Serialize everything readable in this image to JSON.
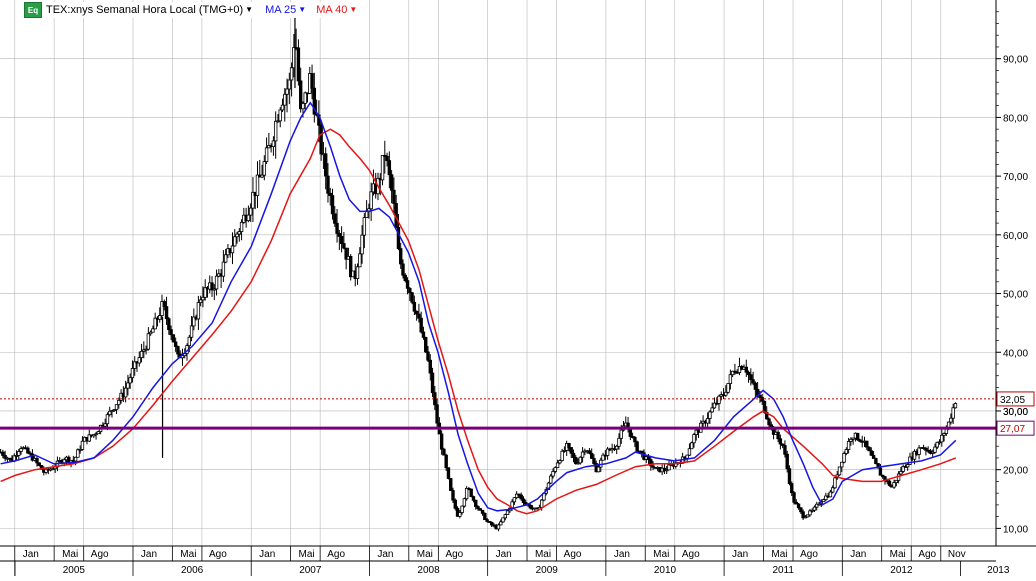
{
  "legend": {
    "badge": "Eq",
    "symbol_label": "TEX:xnys Semanal Hora Local (TMG+0)",
    "ma1_label": "MA 25",
    "ma2_label": "MA 40"
  },
  "colors": {
    "price": "#000000",
    "ma25": "#1515e6",
    "ma40": "#e61515",
    "level_line": "#7a007a",
    "current_line": "#c00000",
    "grid": "#b8b8b8",
    "badge": "#2a9d48"
  },
  "chart_data": {
    "type": "ohlc",
    "interval": "weekly",
    "title": "",
    "ylim": [
      7,
      100
    ],
    "y_ticks": [
      10,
      20,
      30,
      40,
      50,
      60,
      70,
      80,
      90
    ],
    "y_tick_labels": [
      "10,00",
      "20,00",
      "30,00",
      "40,00",
      "50,00",
      "60,00",
      "70,00",
      "80,00",
      "90,00"
    ],
    "xlim": [
      2004.875,
      2013.3
    ],
    "month_ticks": [
      {
        "label": "Jan",
        "x": 2005.0
      },
      {
        "label": "Mai",
        "x": 2005.333
      },
      {
        "label": "Ago",
        "x": 2005.583
      },
      {
        "label": "Jan",
        "x": 2006.0
      },
      {
        "label": "Mai",
        "x": 2006.333
      },
      {
        "label": "Ago",
        "x": 2006.583
      },
      {
        "label": "Jan",
        "x": 2007.0
      },
      {
        "label": "Mai",
        "x": 2007.333
      },
      {
        "label": "Ago",
        "x": 2007.583
      },
      {
        "label": "Jan",
        "x": 2008.0
      },
      {
        "label": "Mai",
        "x": 2008.333
      },
      {
        "label": "Ago",
        "x": 2008.583
      },
      {
        "label": "Jan",
        "x": 2009.0
      },
      {
        "label": "Mai",
        "x": 2009.333
      },
      {
        "label": "Ago",
        "x": 2009.583
      },
      {
        "label": "Jan",
        "x": 2010.0
      },
      {
        "label": "Mai",
        "x": 2010.333
      },
      {
        "label": "Ago",
        "x": 2010.583
      },
      {
        "label": "Jan",
        "x": 2011.0
      },
      {
        "label": "Mai",
        "x": 2011.333
      },
      {
        "label": "Ago",
        "x": 2011.583
      },
      {
        "label": "Jan",
        "x": 2012.0
      },
      {
        "label": "Mai",
        "x": 2012.333
      },
      {
        "label": "Ago",
        "x": 2012.583
      },
      {
        "label": "Nov",
        "x": 2012.833
      }
    ],
    "year_ticks": [
      {
        "label": "2005",
        "x": 2005.0
      },
      {
        "label": "2006",
        "x": 2006.0
      },
      {
        "label": "2007",
        "x": 2007.0
      },
      {
        "label": "2008",
        "x": 2008.0
      },
      {
        "label": "2009",
        "x": 2009.0
      },
      {
        "label": "2010",
        "x": 2010.0
      },
      {
        "label": "2011",
        "x": 2011.0
      },
      {
        "label": "2012",
        "x": 2012.0
      },
      {
        "label": "2013",
        "x": 2013.0
      }
    ],
    "price_anchors": [
      [
        2004.88,
        23
      ],
      [
        2004.97,
        21.5
      ],
      [
        2005.05,
        24
      ],
      [
        2005.15,
        22
      ],
      [
        2005.25,
        19.5
      ],
      [
        2005.33,
        20.5
      ],
      [
        2005.42,
        22
      ],
      [
        2005.5,
        21.5
      ],
      [
        2005.58,
        25
      ],
      [
        2005.67,
        26
      ],
      [
        2005.75,
        28
      ],
      [
        2005.83,
        30.5
      ],
      [
        2005.92,
        33
      ],
      [
        2006.0,
        37
      ],
      [
        2006.08,
        40
      ],
      [
        2006.17,
        44
      ],
      [
        2006.25,
        48
      ],
      [
        2006.33,
        43
      ],
      [
        2006.38,
        39
      ],
      [
        2006.45,
        41
      ],
      [
        2006.5,
        44
      ],
      [
        2006.58,
        50
      ],
      [
        2006.67,
        51
      ],
      [
        2006.75,
        54
      ],
      [
        2006.83,
        58
      ],
      [
        2006.92,
        62
      ],
      [
        2007.0,
        66
      ],
      [
        2007.08,
        70
      ],
      [
        2007.17,
        76
      ],
      [
        2007.25,
        83
      ],
      [
        2007.33,
        86
      ],
      [
        2007.37,
        95
      ],
      [
        2007.42,
        80
      ],
      [
        2007.5,
        87
      ],
      [
        2007.58,
        76
      ],
      [
        2007.65,
        68
      ],
      [
        2007.72,
        62
      ],
      [
        2007.8,
        57
      ],
      [
        2007.87,
        52
      ],
      [
        2007.92,
        58
      ],
      [
        2008.0,
        66
      ],
      [
        2008.08,
        69
      ],
      [
        2008.13,
        74
      ],
      [
        2008.2,
        66
      ],
      [
        2008.25,
        56
      ],
      [
        2008.3,
        53
      ],
      [
        2008.35,
        50
      ],
      [
        2008.42,
        45
      ],
      [
        2008.5,
        38
      ],
      [
        2008.58,
        27
      ],
      [
        2008.63,
        22
      ],
      [
        2008.7,
        15
      ],
      [
        2008.75,
        12
      ],
      [
        2008.83,
        17
      ],
      [
        2008.9,
        14
      ],
      [
        2009.0,
        11
      ],
      [
        2009.08,
        10
      ],
      [
        2009.17,
        13
      ],
      [
        2009.25,
        16
      ],
      [
        2009.33,
        14
      ],
      [
        2009.42,
        13
      ],
      [
        2009.5,
        17
      ],
      [
        2009.58,
        21
      ],
      [
        2009.67,
        24
      ],
      [
        2009.75,
        21
      ],
      [
        2009.83,
        24
      ],
      [
        2009.92,
        20
      ],
      [
        2010.0,
        23
      ],
      [
        2010.08,
        24
      ],
      [
        2010.17,
        28
      ],
      [
        2010.25,
        24
      ],
      [
        2010.33,
        22
      ],
      [
        2010.42,
        20
      ],
      [
        2010.5,
        20
      ],
      [
        2010.58,
        21
      ],
      [
        2010.67,
        22
      ],
      [
        2010.75,
        26
      ],
      [
        2010.83,
        28
      ],
      [
        2010.92,
        31
      ],
      [
        2011.0,
        33
      ],
      [
        2011.08,
        37
      ],
      [
        2011.17,
        38
      ],
      [
        2011.25,
        34
      ],
      [
        2011.33,
        31
      ],
      [
        2011.4,
        27
      ],
      [
        2011.5,
        24
      ],
      [
        2011.58,
        15
      ],
      [
        2011.67,
        12
      ],
      [
        2011.75,
        13
      ],
      [
        2011.83,
        15
      ],
      [
        2011.9,
        16
      ],
      [
        2012.0,
        22
      ],
      [
        2012.08,
        26
      ],
      [
        2012.17,
        25
      ],
      [
        2012.25,
        22
      ],
      [
        2012.33,
        19
      ],
      [
        2012.42,
        17
      ],
      [
        2012.5,
        20
      ],
      [
        2012.58,
        22
      ],
      [
        2012.67,
        24
      ],
      [
        2012.75,
        23
      ],
      [
        2012.83,
        25
      ],
      [
        2012.9,
        28
      ],
      [
        2012.96,
        32
      ]
    ],
    "spikes": [
      {
        "x": 2006.25,
        "low": 22,
        "high": 46
      },
      {
        "x": 2007.37,
        "low": 85,
        "high": 98
      }
    ],
    "ma25": [
      [
        2004.88,
        21
      ],
      [
        2005.0,
        21.5
      ],
      [
        2005.17,
        22.5
      ],
      [
        2005.33,
        21
      ],
      [
        2005.5,
        21.2
      ],
      [
        2005.67,
        22
      ],
      [
        2005.83,
        25
      ],
      [
        2006.0,
        29
      ],
      [
        2006.17,
        34
      ],
      [
        2006.33,
        38
      ],
      [
        2006.5,
        41
      ],
      [
        2006.67,
        45
      ],
      [
        2006.83,
        52
      ],
      [
        2007.0,
        58
      ],
      [
        2007.17,
        67
      ],
      [
        2007.33,
        76
      ],
      [
        2007.42,
        80
      ],
      [
        2007.5,
        82.5
      ],
      [
        2007.58,
        80
      ],
      [
        2007.67,
        75
      ],
      [
        2007.75,
        70
      ],
      [
        2007.83,
        66
      ],
      [
        2007.92,
        64
      ],
      [
        2008.0,
        64
      ],
      [
        2008.08,
        64.5
      ],
      [
        2008.17,
        63
      ],
      [
        2008.25,
        60
      ],
      [
        2008.33,
        57
      ],
      [
        2008.42,
        52
      ],
      [
        2008.5,
        45
      ],
      [
        2008.58,
        40
      ],
      [
        2008.67,
        33
      ],
      [
        2008.75,
        26
      ],
      [
        2008.83,
        21
      ],
      [
        2008.92,
        16
      ],
      [
        2009.0,
        13.5
      ],
      [
        2009.08,
        13
      ],
      [
        2009.17,
        13.2
      ],
      [
        2009.25,
        13.6
      ],
      [
        2009.33,
        14
      ],
      [
        2009.42,
        15
      ],
      [
        2009.5,
        16.5
      ],
      [
        2009.58,
        18
      ],
      [
        2009.67,
        19.5
      ],
      [
        2009.83,
        20.5
      ],
      [
        2010.0,
        21
      ],
      [
        2010.17,
        22
      ],
      [
        2010.25,
        23
      ],
      [
        2010.42,
        22
      ],
      [
        2010.58,
        21.5
      ],
      [
        2010.75,
        22
      ],
      [
        2010.92,
        25
      ],
      [
        2011.08,
        29
      ],
      [
        2011.25,
        32
      ],
      [
        2011.33,
        33.5
      ],
      [
        2011.42,
        32
      ],
      [
        2011.5,
        29
      ],
      [
        2011.58,
        25
      ],
      [
        2011.67,
        21
      ],
      [
        2011.75,
        17
      ],
      [
        2011.83,
        14
      ],
      [
        2011.92,
        15
      ],
      [
        2012.0,
        18
      ],
      [
        2012.17,
        20
      ],
      [
        2012.33,
        20.5
      ],
      [
        2012.5,
        21
      ],
      [
        2012.67,
        21.5
      ],
      [
        2012.83,
        22.5
      ],
      [
        2012.96,
        25
      ]
    ],
    "ma40": [
      [
        2004.88,
        18
      ],
      [
        2005.0,
        19
      ],
      [
        2005.17,
        20
      ],
      [
        2005.33,
        20.5
      ],
      [
        2005.5,
        21
      ],
      [
        2005.67,
        22
      ],
      [
        2005.83,
        24
      ],
      [
        2006.0,
        27
      ],
      [
        2006.17,
        31
      ],
      [
        2006.33,
        35
      ],
      [
        2006.5,
        39
      ],
      [
        2006.67,
        43
      ],
      [
        2006.83,
        47
      ],
      [
        2007.0,
        52
      ],
      [
        2007.17,
        59
      ],
      [
        2007.33,
        67
      ],
      [
        2007.5,
        73
      ],
      [
        2007.58,
        77
      ],
      [
        2007.67,
        78
      ],
      [
        2007.75,
        77
      ],
      [
        2007.83,
        75
      ],
      [
        2007.92,
        73
      ],
      [
        2008.0,
        71
      ],
      [
        2008.08,
        68
      ],
      [
        2008.17,
        65
      ],
      [
        2008.25,
        62
      ],
      [
        2008.33,
        59
      ],
      [
        2008.42,
        54
      ],
      [
        2008.5,
        48
      ],
      [
        2008.58,
        42
      ],
      [
        2008.67,
        36
      ],
      [
        2008.75,
        30
      ],
      [
        2008.83,
        25
      ],
      [
        2008.92,
        20
      ],
      [
        2009.0,
        17
      ],
      [
        2009.08,
        15
      ],
      [
        2009.17,
        14
      ],
      [
        2009.25,
        13
      ],
      [
        2009.33,
        12.5
      ],
      [
        2009.42,
        13
      ],
      [
        2009.5,
        14
      ],
      [
        2009.58,
        15
      ],
      [
        2009.75,
        16.5
      ],
      [
        2009.92,
        17.5
      ],
      [
        2010.08,
        19
      ],
      [
        2010.25,
        20.5
      ],
      [
        2010.42,
        21
      ],
      [
        2010.58,
        21
      ],
      [
        2010.75,
        21.5
      ],
      [
        2010.92,
        24
      ],
      [
        2011.08,
        26.5
      ],
      [
        2011.25,
        29
      ],
      [
        2011.33,
        30
      ],
      [
        2011.42,
        29
      ],
      [
        2011.5,
        27
      ],
      [
        2011.67,
        24
      ],
      [
        2011.83,
        21
      ],
      [
        2011.92,
        19
      ],
      [
        2012.0,
        18.5
      ],
      [
        2012.17,
        18
      ],
      [
        2012.33,
        18
      ],
      [
        2012.5,
        19
      ],
      [
        2012.67,
        20
      ],
      [
        2012.83,
        21
      ],
      [
        2012.96,
        22
      ]
    ],
    "horizontal_lines": [
      {
        "name": "level",
        "value": 27.07,
        "label": "27,07",
        "style": "solid"
      },
      {
        "name": "current",
        "value": 32.05,
        "label": "32,05",
        "style": "dotted"
      }
    ],
    "partial_tick_label": "30,00",
    "grid": true,
    "legend_position": "top-left"
  }
}
